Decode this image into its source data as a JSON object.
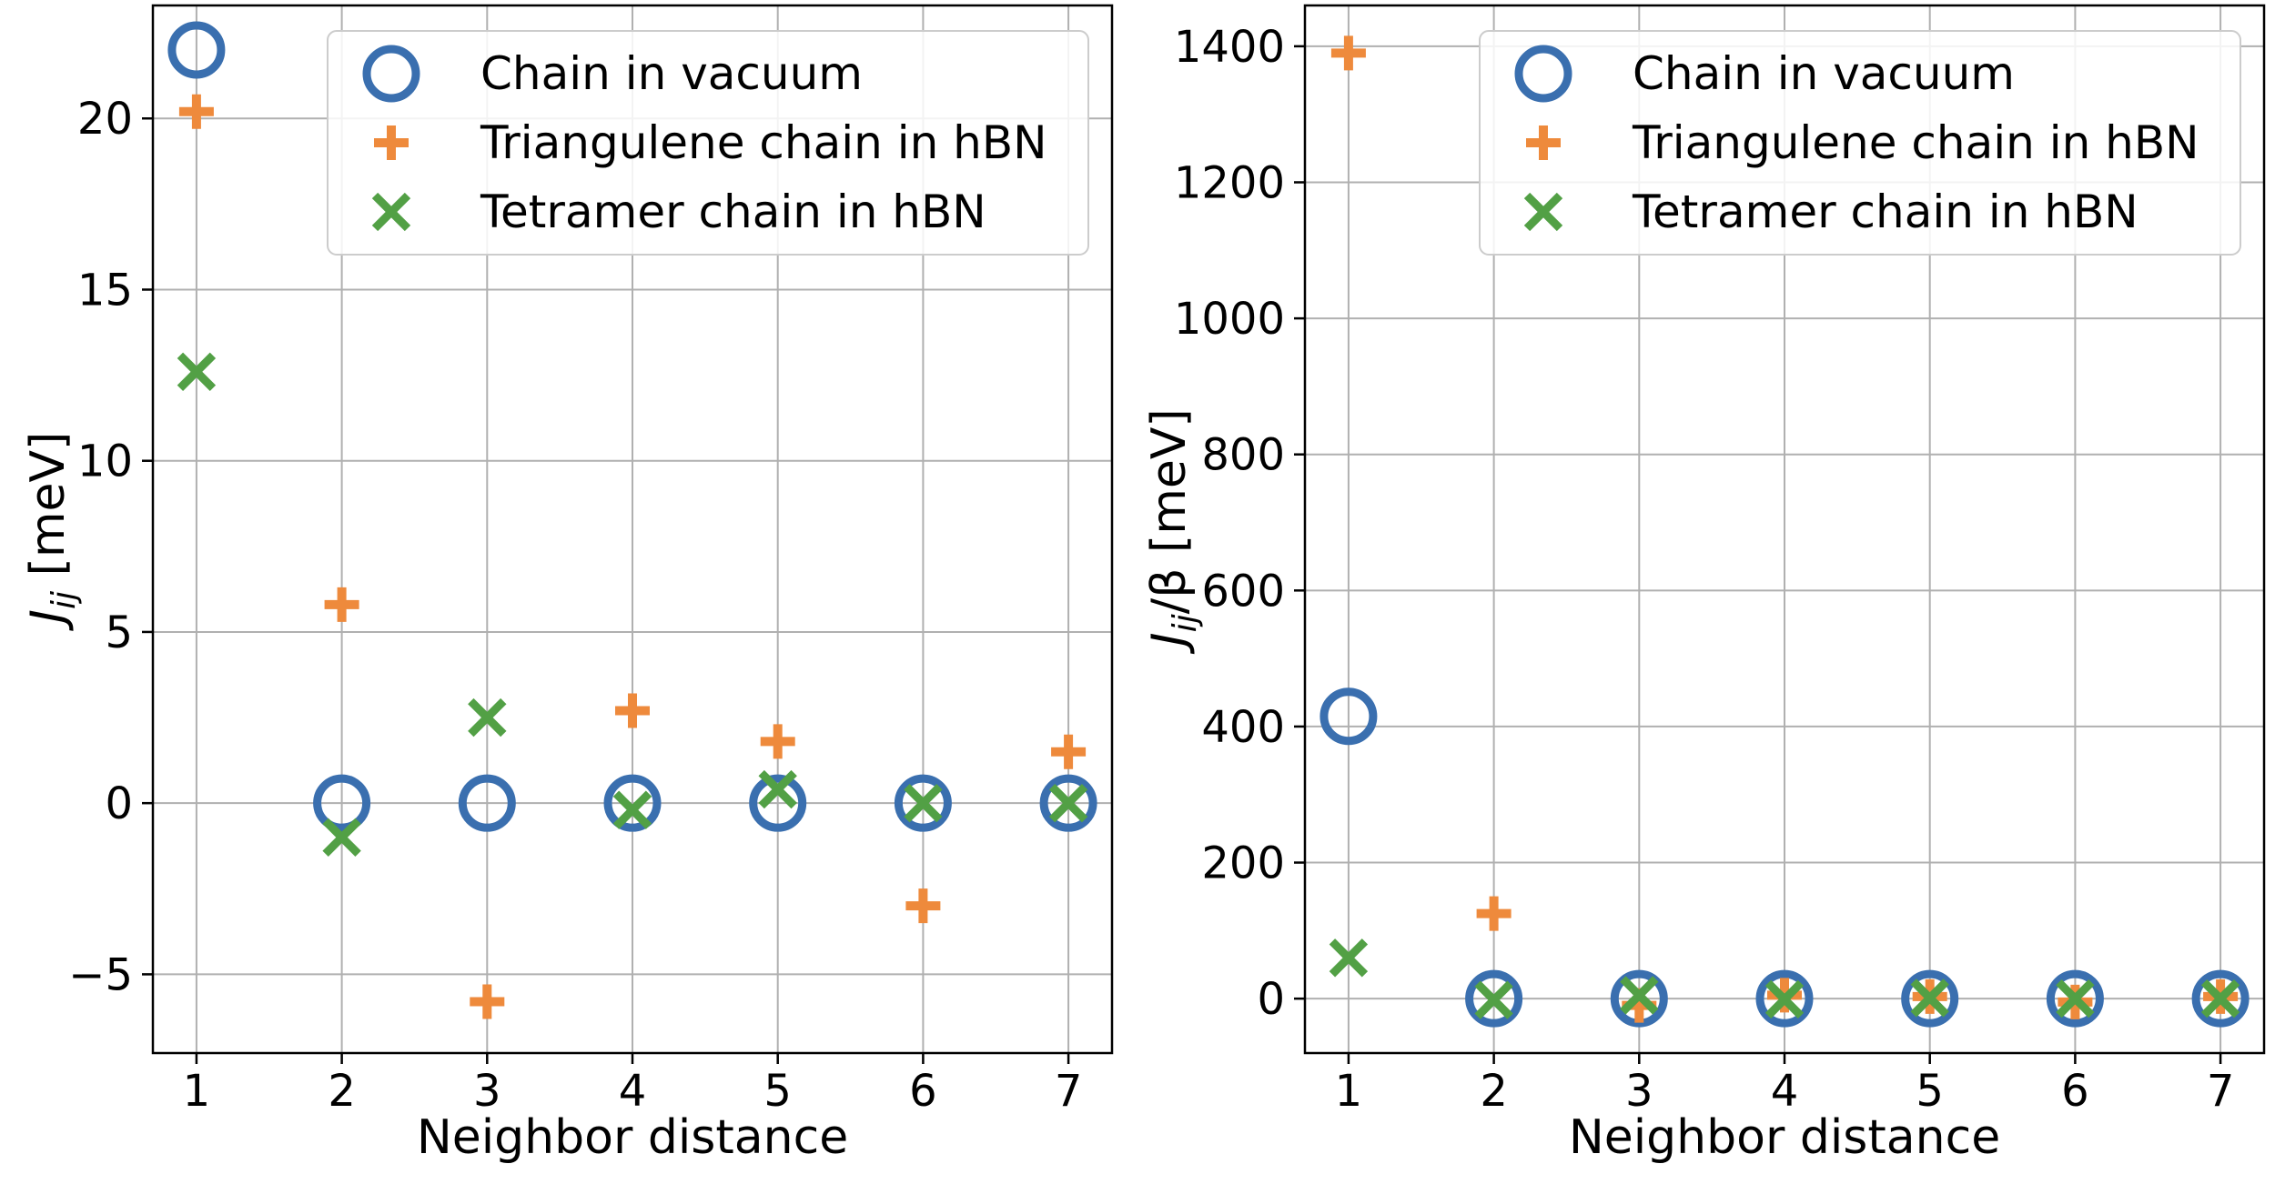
{
  "colors": {
    "vacuum": "#3a6faf",
    "triangulene": "#ee8a3c",
    "tetramer": "#52a045",
    "grid": "#b0b0b0",
    "frame": "#000000"
  },
  "chart_data": [
    {
      "type": "scatter",
      "xlabel": "Neighbor distance",
      "ylabel": "Jij [meV]",
      "ylabel_parts": {
        "symbol": "J",
        "sub": "ij",
        "rest": " [meV]"
      },
      "xlim": [
        0.7,
        7.3
      ],
      "ylim": [
        -7.3,
        23.3
      ],
      "xticks": [
        1,
        2,
        3,
        4,
        5,
        6,
        7
      ],
      "yticks": [
        -5,
        0,
        5,
        10,
        15,
        20
      ],
      "ytick_labels": [
        "−5",
        "0",
        "5",
        "10",
        "15",
        "20"
      ],
      "grid": true,
      "legend_position": "top-right",
      "series": [
        {
          "name": "Chain in vacuum",
          "marker": "circle",
          "x": [
            1,
            2,
            3,
            4,
            5,
            6,
            7
          ],
          "y": [
            22.0,
            0.0,
            0.0,
            0.0,
            0.0,
            0.0,
            0.0
          ]
        },
        {
          "name": "Triangulene chain in hBN",
          "marker": "plus",
          "x": [
            1,
            2,
            3,
            4,
            5,
            6,
            7
          ],
          "y": [
            20.2,
            5.8,
            -5.8,
            2.7,
            1.8,
            -3.0,
            1.5
          ]
        },
        {
          "name": "Tetramer chain in hBN",
          "marker": "x",
          "x": [
            1,
            2,
            3,
            4,
            5,
            6,
            7
          ],
          "y": [
            12.6,
            -1.0,
            2.5,
            -0.2,
            0.4,
            0.0,
            0.0
          ]
        }
      ]
    },
    {
      "type": "scatter",
      "xlabel": "Neighbor distance",
      "ylabel": "Jij/β [meV]",
      "ylabel_parts": {
        "symbol": "J",
        "sub": "ij",
        "rest": "/β [meV]"
      },
      "xlim": [
        0.7,
        7.3
      ],
      "ylim": [
        -80,
        1460
      ],
      "xticks": [
        1,
        2,
        3,
        4,
        5,
        6,
        7
      ],
      "yticks": [
        0,
        200,
        400,
        600,
        800,
        1000,
        1200,
        1400
      ],
      "ytick_labels": [
        "0",
        "200",
        "400",
        "600",
        "800",
        "1000",
        "1200",
        "1400"
      ],
      "grid": true,
      "legend_position": "top-right",
      "series": [
        {
          "name": "Chain in vacuum",
          "marker": "circle",
          "x": [
            1,
            2,
            3,
            4,
            5,
            6,
            7
          ],
          "y": [
            415,
            0,
            0,
            0,
            0,
            0,
            0
          ]
        },
        {
          "name": "Triangulene chain in hBN",
          "marker": "plus",
          "x": [
            1,
            2,
            3,
            4,
            5,
            6,
            7
          ],
          "y": [
            1390,
            125,
            -10,
            5,
            3,
            -5,
            3
          ]
        },
        {
          "name": "Tetramer chain in hBN",
          "marker": "x",
          "x": [
            1,
            2,
            3,
            4,
            5,
            6,
            7
          ],
          "y": [
            60,
            -2,
            5,
            -1,
            1,
            0,
            0
          ]
        }
      ]
    }
  ]
}
